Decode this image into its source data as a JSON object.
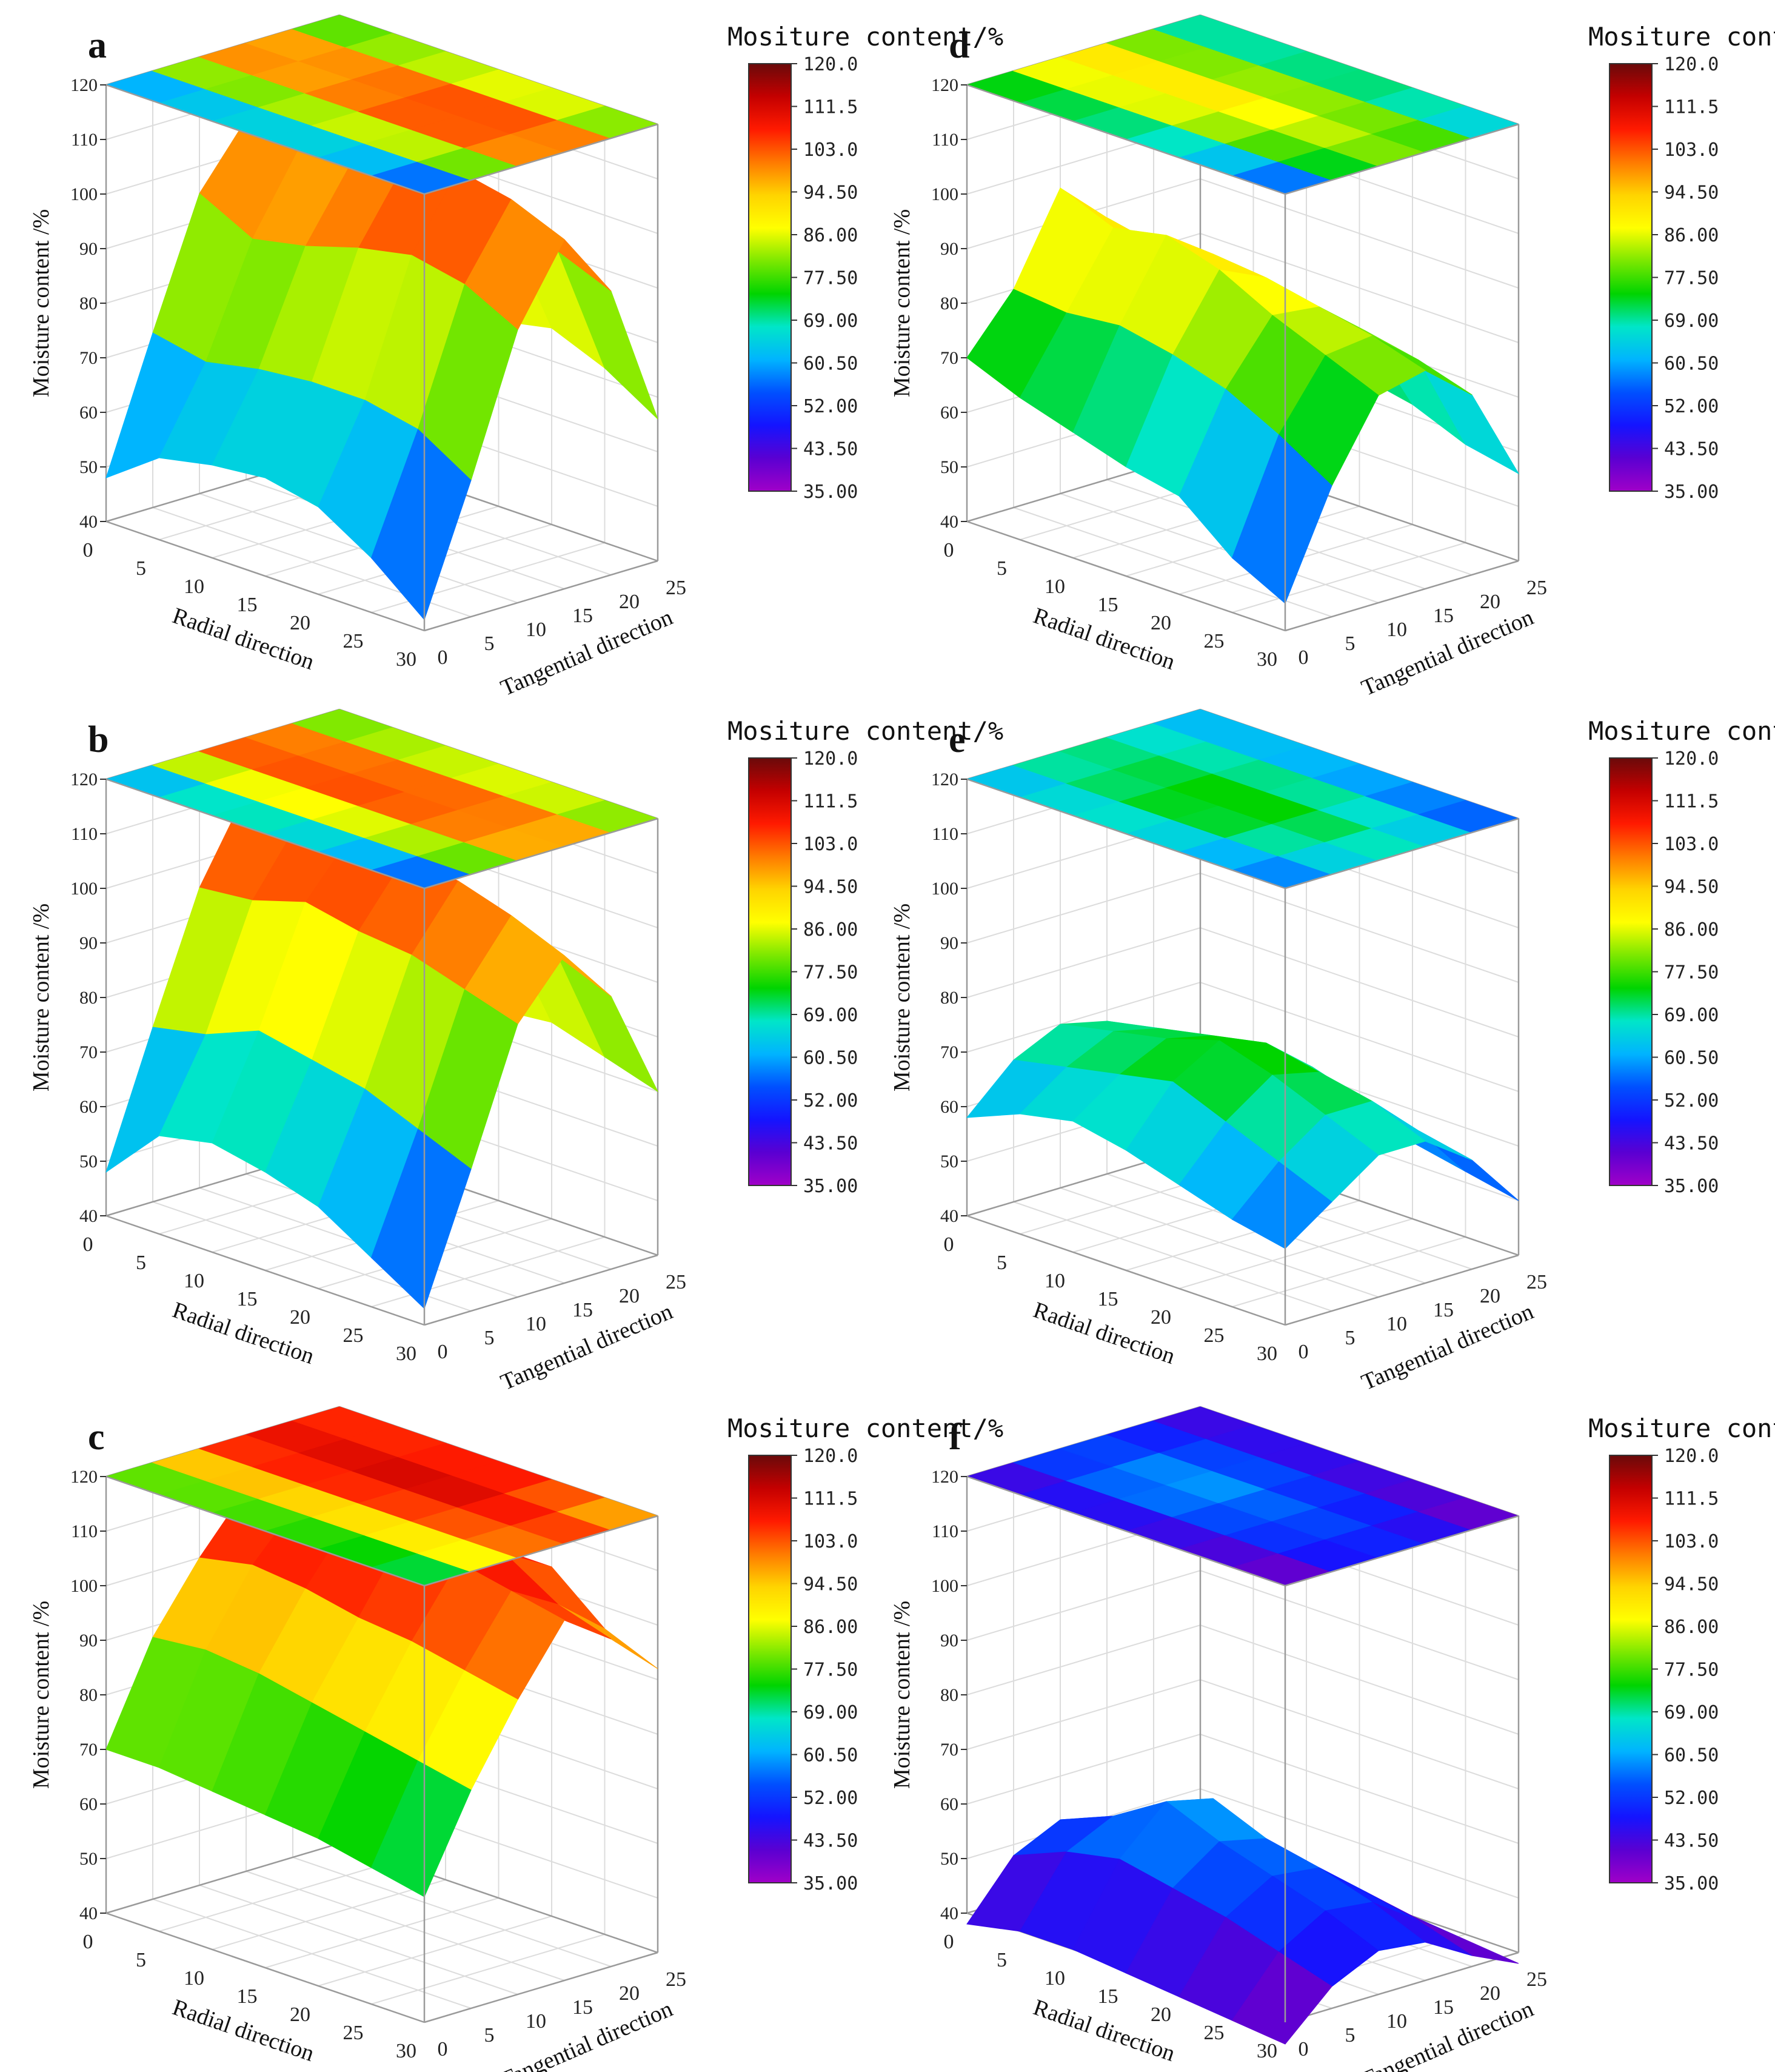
{
  "figure": {
    "colorbar": {
      "title": "Mositure content/%",
      "ticks": [
        "120.0",
        "111.5",
        "103.0",
        "94.50",
        "86.00",
        "77.50",
        "69.00",
        "60.50",
        "52.00",
        "43.50",
        "35.00"
      ],
      "stops": [
        "#6a0a0a",
        "#c40000",
        "#ff1a00",
        "#ff7a00",
        "#ffd400",
        "#ffff00",
        "#7ce800",
        "#00d400",
        "#00e6c8",
        "#00b4ff",
        "#0050ff",
        "#1414ff",
        "#5a00d2",
        "#a000c8"
      ]
    }
  },
  "chart_data": [
    {
      "type": "surface3d",
      "label": "a",
      "zlabel": "Moisture content /%",
      "xlabel": "Radial direction",
      "ylabel": "Tangential direction",
      "zticks": [
        "40",
        "50",
        "60",
        "70",
        "80",
        "90",
        "100",
        "110",
        "120"
      ],
      "xticks": [
        "0",
        "5",
        "10",
        "15",
        "20",
        "25",
        "30"
      ],
      "yticks": [
        "0",
        "5",
        "10",
        "15",
        "20",
        "25"
      ],
      "zlim": [
        40,
        120
      ],
      "grid": true,
      "radial": [
        0,
        5,
        10,
        15,
        20,
        25,
        30
      ],
      "tangential": [
        0,
        5,
        10,
        15,
        20,
        25
      ],
      "z": [
        [
          48,
          72,
          95,
          106,
          88,
          67
        ],
        [
          55,
          70,
          90,
          104,
          92,
          70
        ],
        [
          57,
          72,
          92,
          105,
          94,
          72
        ],
        [
          58,
          73,
          95,
          108,
          96,
          74
        ],
        [
          56,
          73,
          97,
          110,
          98,
          76
        ],
        [
          50,
          71,
          95,
          108,
          96,
          72
        ],
        [
          42,
          65,
          90,
          104,
          92,
          66
        ]
      ]
    },
    {
      "type": "surface3d",
      "label": "b",
      "zlabel": "Moisture content /%",
      "xlabel": "Radial direction",
      "ylabel": "Tangential direction",
      "zticks": [
        "40",
        "50",
        "60",
        "70",
        "80",
        "90",
        "100",
        "110",
        "120"
      ],
      "xticks": [
        "0",
        "5",
        "10",
        "15",
        "20",
        "25",
        "30"
      ],
      "yticks": [
        "0",
        "5",
        "10",
        "15",
        "20",
        "25"
      ],
      "zlim": [
        40,
        120
      ],
      "grid": true,
      "radial": [
        0,
        5,
        10,
        15,
        20,
        25,
        30
      ],
      "tangential": [
        0,
        5,
        10,
        15,
        20,
        25
      ],
      "z": [
        [
          48,
          72,
          95,
          110,
          90,
          70
        ],
        [
          58,
          74,
          96,
          108,
          92,
          72
        ],
        [
          60,
          78,
          99,
          109,
          94,
          74
        ],
        [
          58,
          76,
          97,
          108,
          95,
          75
        ],
        [
          55,
          74,
          96,
          107,
          96,
          76
        ],
        [
          49,
          70,
          93,
          104,
          94,
          73
        ],
        [
          43,
          66,
          90,
          100,
          90,
          70
        ]
      ]
    },
    {
      "type": "surface3d",
      "label": "c",
      "zlabel": "Moisture content /%",
      "xlabel": "Radial direction",
      "ylabel": "Tangential direction",
      "zticks": [
        "40",
        "50",
        "60",
        "70",
        "80",
        "90",
        "100",
        "110",
        "120"
      ],
      "xticks": [
        "0",
        "5",
        "10",
        "15",
        "20",
        "25",
        "30"
      ],
      "yticks": [
        "0",
        "5",
        "10",
        "15",
        "20",
        "25"
      ],
      "zlim": [
        40,
        120
      ],
      "grid": true,
      "radial": [
        0,
        5,
        10,
        15,
        20,
        25,
        30
      ],
      "tangential": [
        0,
        5,
        10,
        15,
        20,
        25
      ],
      "z": [
        [
          70,
          88,
          100,
          110,
          107,
          106
        ],
        [
          70,
          89,
          102,
          111,
          108,
          104
        ],
        [
          69,
          88,
          101,
          112,
          110,
          103
        ],
        [
          68,
          86,
          99,
          112,
          111,
          104
        ],
        [
          67,
          84,
          98,
          110,
          109,
          104
        ],
        [
          65,
          82,
          96,
          108,
          103,
          96
        ],
        [
          63,
          80,
          94,
          106,
          100,
          92
        ]
      ]
    },
    {
      "type": "surface3d",
      "label": "d",
      "zlabel": "Moisture content /%",
      "xlabel": "Radial direction",
      "ylabel": "Tangential direction",
      "zticks": [
        "40",
        "50",
        "60",
        "70",
        "80",
        "90",
        "100",
        "110",
        "120"
      ],
      "xticks": [
        "0",
        "5",
        "10",
        "15",
        "20",
        "25",
        "30"
      ],
      "yticks": [
        "0",
        "5",
        "10",
        "15",
        "20",
        "25"
      ],
      "zlim": [
        40,
        120
      ],
      "grid": true,
      "radial": [
        0,
        5,
        10,
        15,
        20,
        25,
        30
      ],
      "tangential": [
        0,
        5,
        10,
        15,
        20,
        25
      ],
      "z": [
        [
          70,
          80,
          96,
          88,
          75,
          64
        ],
        [
          66,
          79,
          92,
          86,
          74,
          63
        ],
        [
          63,
          80,
          94,
          88,
          76,
          63
        ],
        [
          60,
          78,
          91,
          87,
          77,
          64
        ],
        [
          58,
          75,
          86,
          85,
          78,
          62
        ],
        [
          50,
          70,
          82,
          83,
          76,
          58
        ],
        [
          45,
          64,
          78,
          80,
          73,
          56
        ]
      ]
    },
    {
      "type": "surface3d",
      "label": "e",
      "zlabel": "Moisture content /%",
      "xlabel": "Radial direction",
      "ylabel": "Tangential direction",
      "zticks": [
        "40",
        "50",
        "60",
        "70",
        "80",
        "90",
        "100",
        "110",
        "120"
      ],
      "xticks": [
        "0",
        "5",
        "10",
        "15",
        "20",
        "25",
        "30"
      ],
      "yticks": [
        "0",
        "5",
        "10",
        "15",
        "20",
        "25"
      ],
      "zlim": [
        40,
        120
      ],
      "grid": true,
      "radial": [
        0,
        5,
        10,
        15,
        20,
        25,
        30
      ],
      "tangential": [
        0,
        5,
        10,
        15,
        20,
        25
      ],
      "z": [
        [
          58,
          66,
          70,
          68,
          64,
          60
        ],
        [
          62,
          68,
          72,
          70,
          66,
          60
        ],
        [
          64,
          70,
          74,
          72,
          66,
          58
        ],
        [
          62,
          72,
          77,
          74,
          67,
          56
        ],
        [
          59,
          68,
          74,
          72,
          64,
          54
        ],
        [
          56,
          64,
          70,
          70,
          62,
          52
        ],
        [
          54,
          60,
          66,
          66,
          60,
          50
        ]
      ]
    },
    {
      "type": "surface3d",
      "label": "f",
      "zlabel": "Moisture content /%",
      "xlabel": "Radial direction",
      "ylabel": "Tangential direction",
      "zticks": [
        "40",
        "50",
        "60",
        "70",
        "80",
        "90",
        "100",
        "110",
        "120"
      ],
      "xticks": [
        "0",
        "5",
        "10",
        "15",
        "20",
        "25",
        "30"
      ],
      "yticks": [
        "0",
        "5",
        "10",
        "15",
        "20",
        "25"
      ],
      "zlim": [
        40,
        120
      ],
      "grid": true,
      "radial": [
        0,
        5,
        10,
        15,
        20,
        25,
        30
      ],
      "tangential": [
        0,
        5,
        10,
        15,
        20,
        25
      ],
      "z": [
        [
          38,
          48,
          52,
          50,
          46,
          42
        ],
        [
          40,
          52,
          56,
          54,
          48,
          42
        ],
        [
          40,
          54,
          62,
          60,
          50,
          42
        ],
        [
          39,
          52,
          58,
          56,
          48,
          41
        ],
        [
          38,
          50,
          55,
          54,
          47,
          40
        ],
        [
          37,
          47,
          52,
          51,
          45,
          39
        ],
        [
          36,
          44,
          48,
          47,
          42,
          38
        ]
      ]
    }
  ]
}
